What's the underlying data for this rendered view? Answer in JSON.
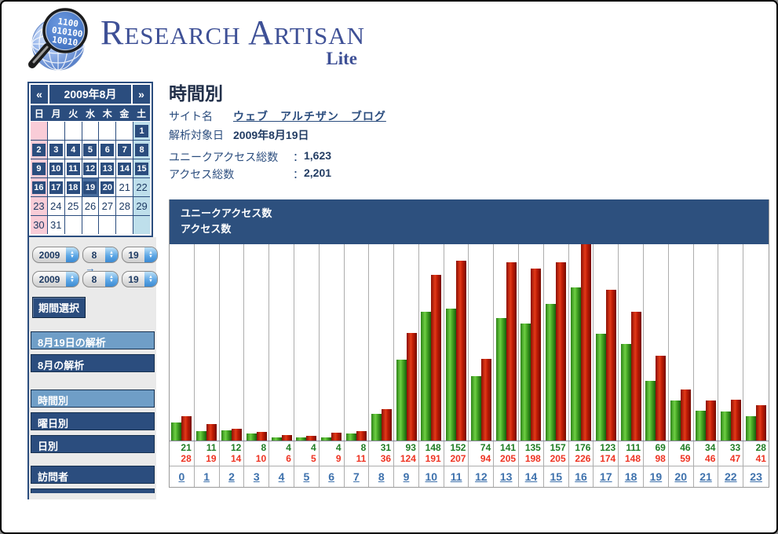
{
  "logo": {
    "title": "Research Artisan",
    "subtitle": "Lite"
  },
  "colors": {
    "navy": "#2b4d7e",
    "light_item": "#6f9ec7",
    "legend_band": "#2d507e",
    "sunday_bg": "#f9ccd7",
    "saturday_bg": "#bedfeb",
    "selected_day_bg": "#4a6e9e",
    "unique_green": "#1f7d24",
    "access_red": "#ee3322",
    "link_blue": "#3f72ad"
  },
  "sidebar": {
    "calendar": {
      "prev": "«",
      "next": "»",
      "title": "2009年8月",
      "weekdays": [
        "日",
        "月",
        "火",
        "水",
        "木",
        "金",
        "土"
      ],
      "weeks": [
        [
          null,
          null,
          null,
          null,
          null,
          null,
          {
            "d": "1",
            "btn": true
          }
        ],
        [
          {
            "d": "2",
            "btn": true
          },
          {
            "d": "3",
            "btn": true
          },
          {
            "d": "4",
            "btn": true
          },
          {
            "d": "5",
            "btn": true
          },
          {
            "d": "6",
            "btn": true
          },
          {
            "d": "7",
            "btn": true
          },
          {
            "d": "8",
            "btn": true
          }
        ],
        [
          {
            "d": "9",
            "btn": true
          },
          {
            "d": "10",
            "btn": true
          },
          {
            "d": "11",
            "btn": true
          },
          {
            "d": "12",
            "btn": true
          },
          {
            "d": "13",
            "btn": true
          },
          {
            "d": "14",
            "btn": true
          },
          {
            "d": "15",
            "btn": true
          }
        ],
        [
          {
            "d": "16",
            "btn": true
          },
          {
            "d": "17",
            "btn": true
          },
          {
            "d": "18",
            "btn": true
          },
          {
            "d": "19",
            "btn": true,
            "sel": true
          },
          {
            "d": "20",
            "btn": true
          },
          {
            "d": "21"
          },
          {
            "d": "22"
          }
        ],
        [
          {
            "d": "23"
          },
          {
            "d": "24"
          },
          {
            "d": "25"
          },
          {
            "d": "26"
          },
          {
            "d": "27"
          },
          {
            "d": "28"
          },
          {
            "d": "29"
          }
        ],
        [
          {
            "d": "30"
          },
          {
            "d": "31"
          },
          null,
          null,
          null,
          null,
          null
        ]
      ]
    },
    "range_from": [
      "2009",
      "8",
      "19"
    ],
    "range_to": [
      "2009",
      "8",
      "19"
    ],
    "arrow": "→",
    "period_button": "期間選択",
    "menu_groups": [
      [
        {
          "label": "8月19日の解析",
          "variant": "light"
        },
        {
          "label": "8月の解析",
          "variant": "dark"
        }
      ],
      [
        {
          "label": "時間別",
          "variant": "light"
        },
        {
          "label": "曜日別",
          "variant": "dark"
        },
        {
          "label": "日別",
          "variant": "dark"
        }
      ],
      [
        {
          "label": "訪問者",
          "variant": "dark"
        }
      ]
    ]
  },
  "main": {
    "title": "時間別",
    "site_label": "サイト名",
    "site_value": "ウェブ　アルチザン　ブログ",
    "date_label": "解析対象日",
    "date_value": "2009年8月19日",
    "unique_label": "ユニークアクセス総数",
    "access_label": "アクセス総数",
    "colon": "：",
    "unique_value": "1,623",
    "access_value": "2,201"
  },
  "chart_data": {
    "type": "bar",
    "legend": [
      "ユニークアクセス数",
      "アクセス数"
    ],
    "legend_position": "top",
    "categories": [
      "0",
      "1",
      "2",
      "3",
      "4",
      "5",
      "6",
      "7",
      "8",
      "9",
      "10",
      "11",
      "12",
      "13",
      "14",
      "15",
      "16",
      "17",
      "18",
      "19",
      "20",
      "21",
      "22",
      "23"
    ],
    "series": [
      {
        "name": "ユニークアクセス数",
        "color": "#49ab27",
        "values": [
          21,
          11,
          12,
          8,
          4,
          4,
          4,
          8,
          31,
          93,
          148,
          152,
          74,
          141,
          135,
          157,
          176,
          123,
          111,
          69,
          46,
          34,
          33,
          28
        ]
      },
      {
        "name": "アクセス数",
        "color": "#c21d06",
        "values": [
          28,
          19,
          14,
          10,
          6,
          5,
          9,
          11,
          36,
          124,
          191,
          207,
          94,
          205,
          198,
          205,
          226,
          174,
          148,
          98,
          59,
          46,
          47,
          41
        ]
      }
    ],
    "ylim": [
      0,
      226
    ],
    "grid": "vertical",
    "xlabel": "",
    "ylabel": ""
  }
}
